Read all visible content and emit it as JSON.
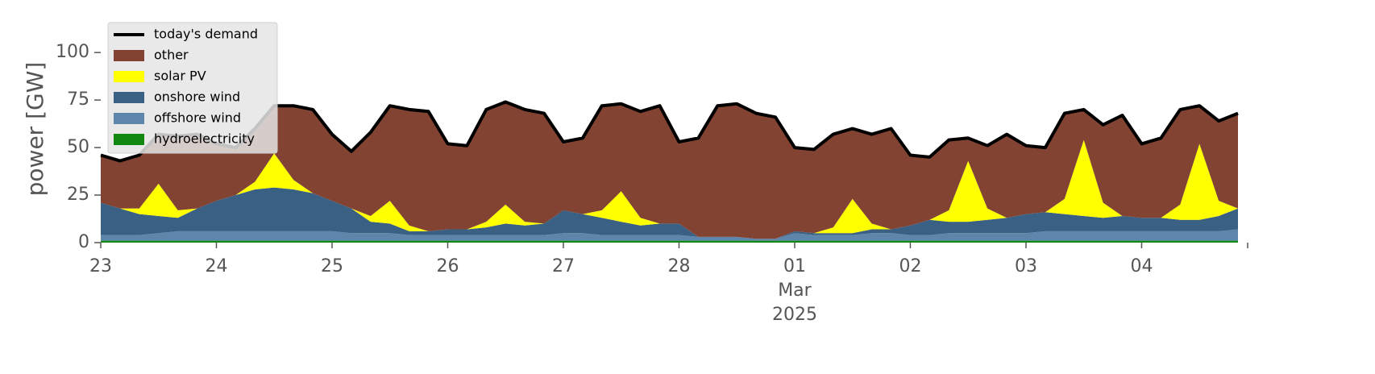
{
  "chart_data": {
    "type": "stacked-area",
    "ylabel": "power [GW]",
    "ylim": [
      0,
      120
    ],
    "yticks": [
      0,
      25,
      50,
      75,
      100
    ],
    "xlim": [
      "2025-02-23T00:00",
      "2025-03-04T22:00"
    ],
    "xticks": [
      {
        "value": "2025-02-23T00:00",
        "label": "23"
      },
      {
        "value": "2025-02-24T00:00",
        "label": "24"
      },
      {
        "value": "2025-02-25T00:00",
        "label": "25"
      },
      {
        "value": "2025-02-26T00:00",
        "label": "26"
      },
      {
        "value": "2025-02-27T00:00",
        "label": "27"
      },
      {
        "value": "2025-02-28T00:00",
        "label": "28"
      },
      {
        "value": "2025-03-01T00:00",
        "label": [
          "01",
          "Mar",
          "2025"
        ]
      },
      {
        "value": "2025-03-02T00:00",
        "label": "02"
      },
      {
        "value": "2025-03-03T00:00",
        "label": "03"
      },
      {
        "value": "2025-03-04T00:00",
        "label": "04"
      }
    ],
    "legend": "upper left",
    "x": [
      "2025-02-23T00:00",
      "2025-02-23T04:00",
      "2025-02-23T08:00",
      "2025-02-23T12:00",
      "2025-02-23T16:00",
      "2025-02-23T20:00",
      "2025-02-24T00:00",
      "2025-02-24T04:00",
      "2025-02-24T08:00",
      "2025-02-24T12:00",
      "2025-02-24T16:00",
      "2025-02-24T20:00",
      "2025-02-25T00:00",
      "2025-02-25T04:00",
      "2025-02-25T08:00",
      "2025-02-25T12:00",
      "2025-02-25T16:00",
      "2025-02-25T20:00",
      "2025-02-26T00:00",
      "2025-02-26T04:00",
      "2025-02-26T08:00",
      "2025-02-26T12:00",
      "2025-02-26T16:00",
      "2025-02-26T20:00",
      "2025-02-27T00:00",
      "2025-02-27T04:00",
      "2025-02-27T08:00",
      "2025-02-27T12:00",
      "2025-02-27T16:00",
      "2025-02-27T20:00",
      "2025-02-28T00:00",
      "2025-02-28T04:00",
      "2025-02-28T08:00",
      "2025-02-28T12:00",
      "2025-02-28T16:00",
      "2025-02-28T20:00",
      "2025-03-01T00:00",
      "2025-03-01T04:00",
      "2025-03-01T08:00",
      "2025-03-01T12:00",
      "2025-03-01T16:00",
      "2025-03-01T20:00",
      "2025-03-02T00:00",
      "2025-03-02T04:00",
      "2025-03-02T08:00",
      "2025-03-02T12:00",
      "2025-03-02T16:00",
      "2025-03-02T20:00",
      "2025-03-03T00:00",
      "2025-03-03T04:00",
      "2025-03-03T08:00",
      "2025-03-03T12:00",
      "2025-03-03T16:00",
      "2025-03-03T20:00",
      "2025-03-04T00:00",
      "2025-03-04T04:00",
      "2025-03-04T08:00",
      "2025-03-04T12:00",
      "2025-03-04T16:00",
      "2025-03-04T20:00"
    ],
    "demand": {
      "name": "today's demand",
      "color": "#000000",
      "values": [
        46,
        43,
        46,
        57,
        56,
        57,
        52,
        50,
        60,
        72,
        72,
        70,
        57,
        48,
        58,
        72,
        70,
        69,
        52,
        51,
        70,
        74,
        70,
        68,
        53,
        55,
        72,
        73,
        69,
        72,
        53,
        55,
        72,
        73,
        68,
        66,
        50,
        49,
        57,
        60,
        57,
        60,
        46,
        45,
        54,
        55,
        51,
        57,
        51,
        50,
        68,
        70,
        62,
        67,
        52,
        55,
        70,
        72,
        64,
        68
      ]
    },
    "series": [
      {
        "name": "hydroelectricity",
        "color": "#118811",
        "values": [
          1,
          1,
          1,
          1,
          1,
          1,
          1,
          1,
          1,
          1,
          1,
          1,
          1,
          1,
          1,
          1,
          1,
          1,
          1,
          1,
          1,
          1,
          1,
          1,
          1,
          1,
          1,
          1,
          1,
          1,
          1,
          1,
          1,
          1,
          1,
          1,
          1,
          1,
          1,
          1,
          1,
          1,
          1,
          1,
          1,
          1,
          1,
          1,
          1,
          1,
          1,
          1,
          1,
          1,
          1,
          1,
          1,
          1,
          1,
          1
        ]
      },
      {
        "name": "offshore wind",
        "color": "#5e86aa",
        "values": [
          3,
          3,
          3,
          4,
          5,
          5,
          5,
          5,
          5,
          5,
          5,
          5,
          5,
          4,
          4,
          4,
          3,
          3,
          3,
          3,
          3,
          3,
          3,
          3,
          4,
          4,
          3,
          3,
          3,
          3,
          3,
          2,
          2,
          2,
          1,
          1,
          4,
          3,
          3,
          3,
          4,
          4,
          3,
          3,
          4,
          4,
          4,
          4,
          4,
          5,
          5,
          5,
          5,
          5,
          5,
          5,
          5,
          5,
          5,
          6
        ]
      },
      {
        "name": "onshore wind",
        "color": "#3a6083",
        "values": [
          17,
          14,
          11,
          9,
          7,
          12,
          16,
          19,
          22,
          23,
          22,
          20,
          16,
          13,
          6,
          5,
          2,
          2,
          3,
          3,
          4,
          6,
          5,
          6,
          12,
          10,
          9,
          7,
          5,
          6,
          6,
          0,
          0,
          0,
          0,
          0,
          1,
          1,
          1,
          1,
          2,
          2,
          5,
          8,
          6,
          6,
          7,
          8,
          10,
          10,
          9,
          8,
          7,
          8,
          7,
          7,
          6,
          6,
          8,
          11
        ]
      },
      {
        "name": "solar PV",
        "color": "#ffff00",
        "values": [
          0,
          0,
          3,
          17,
          4,
          0,
          0,
          0,
          4,
          18,
          5,
          0,
          0,
          0,
          3,
          12,
          3,
          0,
          0,
          0,
          3,
          10,
          2,
          0,
          0,
          0,
          4,
          16,
          4,
          0,
          0,
          0,
          0,
          0,
          0,
          0,
          0,
          0,
          3,
          18,
          3,
          0,
          0,
          0,
          6,
          32,
          6,
          0,
          0,
          0,
          8,
          40,
          8,
          0,
          0,
          0,
          8,
          40,
          8,
          0
        ]
      },
      {
        "name": "other",
        "color": "#824333",
        "values": [
          25,
          25,
          28,
          26,
          39,
          39,
          30,
          25,
          28,
          25,
          39,
          44,
          35,
          30,
          44,
          50,
          61,
          63,
          45,
          44,
          59,
          54,
          59,
          58,
          36,
          40,
          55,
          46,
          56,
          62,
          43,
          52,
          69,
          70,
          66,
          64,
          44,
          44,
          49,
          37,
          47,
          53,
          37,
          33,
          37,
          12,
          33,
          44,
          36,
          34,
          45,
          16,
          41,
          53,
          39,
          42,
          50,
          20,
          42,
          50
        ]
      }
    ]
  }
}
